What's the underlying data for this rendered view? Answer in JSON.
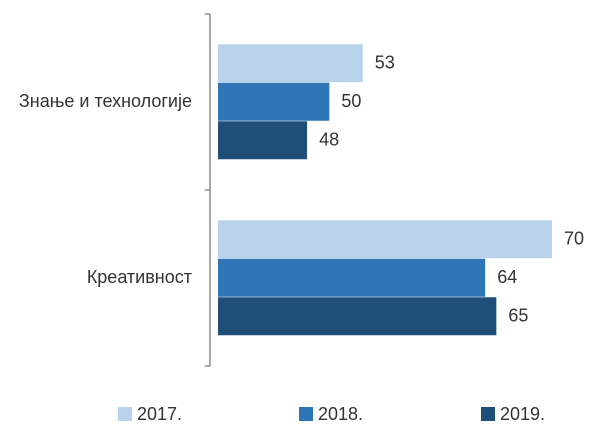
{
  "chart_data": {
    "type": "hbar",
    "categories": [
      "Знање и технологије",
      "Креативност"
    ],
    "series": [
      {
        "name": "2017.",
        "color": "#b9d3ec",
        "values": [
          53,
          70
        ]
      },
      {
        "name": "2018.",
        "color": "#2e75b6",
        "values": [
          50,
          64
        ]
      },
      {
        "name": "2019.",
        "color": "#1f4e79",
        "values": [
          48,
          65
        ]
      }
    ],
    "xlim": [
      40,
      70
    ],
    "legend": "bottom"
  }
}
